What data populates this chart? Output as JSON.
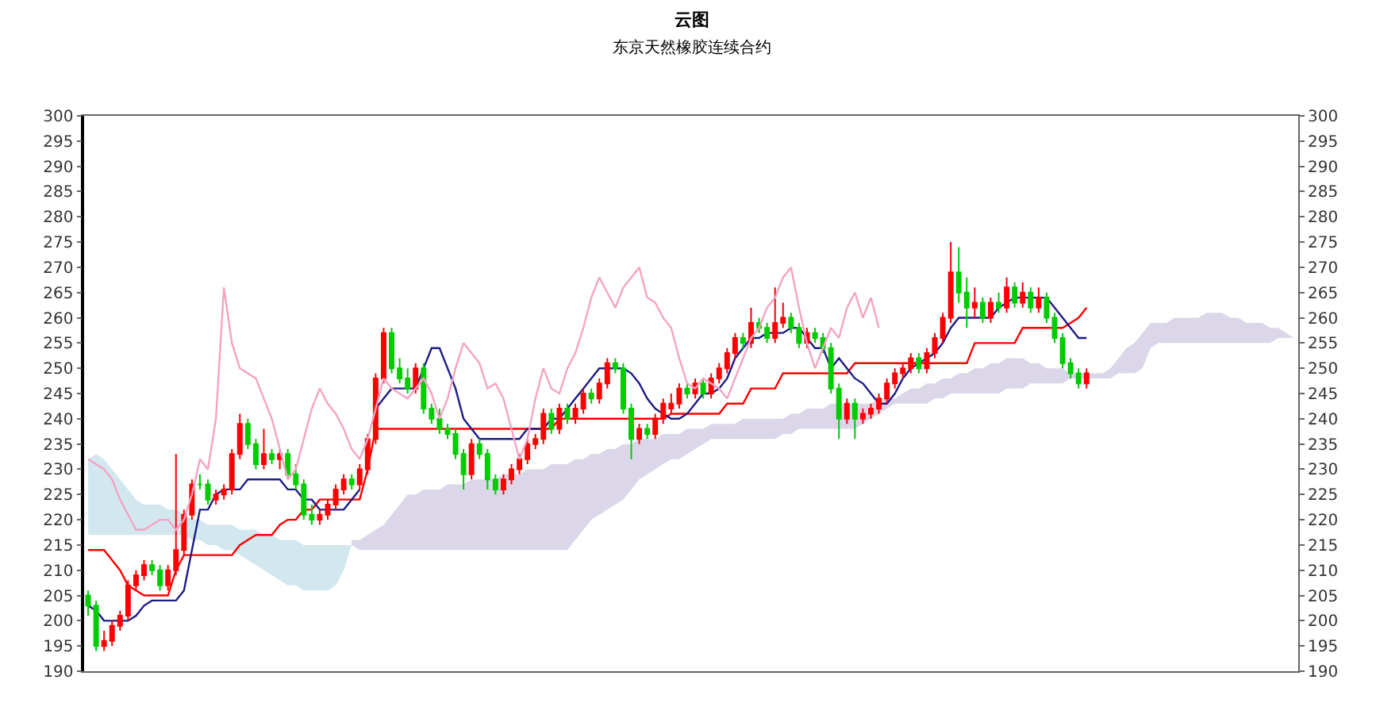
{
  "chart_data": {
    "type": "candlestick",
    "title": "云图",
    "subtitle": "东京天然橡胶连续合约",
    "categories": [
      null,
      null,
      null,
      null,
      null,
      null,
      null,
      null,
      null,
      null,
      null,
      null,
      null,
      null,
      null,
      null,
      null,
      null,
      null,
      null,
      null,
      null,
      null,
      null,
      null,
      null,
      null,
      null,
      null,
      null,
      null,
      null,
      null,
      null,
      null,
      null,
      null,
      null,
      null,
      null,
      null,
      null,
      null,
      null,
      null,
      null,
      null,
      null,
      null,
      null,
      null,
      null,
      null,
      null,
      null,
      null,
      null,
      null,
      null,
      null,
      null,
      null,
      null,
      null,
      null,
      null,
      null,
      null,
      null,
      null,
      null,
      null,
      null,
      null,
      null,
      null,
      null,
      null,
      null,
      null,
      null,
      null,
      null,
      null,
      null,
      null,
      null,
      null,
      null,
      null,
      null,
      null,
      null,
      null,
      null,
      null,
      null,
      null,
      null,
      null,
      null,
      null,
      null,
      null,
      null,
      null,
      null,
      null,
      null,
      null,
      null,
      null,
      null,
      null,
      null,
      null,
      null,
      null,
      null,
      null,
      null,
      null,
      null,
      null,
      null,
      null,
      null,
      null,
      null,
      null,
      null,
      null,
      null,
      null,
      null,
      null,
      null,
      null,
      null,
      null,
      null,
      null,
      null,
      null,
      null,
      null,
      null,
      null,
      null,
      null,
      null,
      null
    ],
    "colors": [
      "#00cc00",
      "#00cc00",
      "#ff0000",
      "#ff0000",
      "#ff0000",
      "#ff0000",
      "#ff0000",
      "#ff0000",
      "#00cc00",
      "#00cc00",
      "#ff0000",
      "#ff0000",
      "#ff0000",
      "#ff0000",
      "#00cc00",
      "#00cc00",
      "#ff0000",
      "#ff0000",
      "#ff0000",
      "#ff0000",
      "#00cc00",
      "#00cc00",
      "#ff0000",
      "#00cc00",
      "#ff0000",
      "#00cc00",
      "#00cc00",
      "#00cc00",
      "#00cc00",
      "#ff0000",
      "#ff0000",
      "#ff0000",
      "#ff0000",
      "#00cc00",
      "#ff0000",
      "#ff0000",
      "#ff0000",
      "#ff0000",
      "#00cc00",
      "#00cc00",
      "#00cc00",
      "#ff0000",
      "#00cc00",
      "#00cc00",
      "#00cc00",
      "#00cc00",
      "#00cc00",
      "#00cc00",
      "#ff0000",
      "#00cc00",
      "#00cc00",
      "#00cc00",
      "#ff0000",
      "#ff0000",
      "#ff0000",
      "#ff0000",
      "#ff0000",
      "#ff0000",
      "#00cc00",
      "#ff0000",
      "#00cc00",
      "#ff0000",
      "#ff0000",
      "#00cc00",
      "#ff0000",
      "#ff0000",
      "#00cc00",
      "#00cc00",
      "#00cc00",
      "#ff0000",
      "#00cc00",
      "#ff0000",
      "#ff0000",
      "#ff0000",
      "#ff0000",
      "#00cc00",
      "#ff0000",
      "#00cc00",
      "#ff0000",
      "#ff0000",
      "#ff0000",
      "#ff0000",
      "#00cc00",
      "#ff0000",
      "#00cc00",
      "#00cc00",
      "#ff0000",
      "#ff0000",
      "#00cc00",
      "#00cc00",
      "#ff0000",
      "#00cc00",
      "#00cc00",
      "#00cc00",
      "#00cc00",
      "#ff0000",
      "#00cc00",
      "#ff0000",
      "#ff0000",
      "#ff0000",
      "#ff0000",
      "#ff0000",
      "#ff0000",
      "#ff0000",
      "#00cc00",
      "#ff0000",
      "#ff0000",
      "#ff0000",
      "#ff0000",
      "#00cc00",
      "#00cc00",
      "#ff0000",
      "#00cc00",
      "#ff0000",
      "#00cc00",
      "#ff0000",
      "#00cc00",
      "#ff0000",
      "#00cc00",
      "#ff0000",
      "#00cc00",
      "#00cc00",
      "#00cc00",
      "#00cc00",
      "#00cc00",
      "#ff0000",
      null,
      null,
      null,
      null,
      null,
      null,
      null,
      null,
      null,
      null,
      null,
      null,
      null,
      null,
      null,
      null,
      null,
      null,
      null,
      null,
      null,
      null,
      null,
      null,
      null,
      null
    ],
    "ohlc": [
      [
        205,
        206,
        201,
        203
      ],
      [
        203,
        204,
        194,
        195
      ],
      [
        195,
        198,
        194,
        196
      ],
      [
        196,
        200,
        195,
        199
      ],
      [
        199,
        202,
        198,
        201
      ],
      [
        201,
        208,
        200,
        207
      ],
      [
        207,
        210,
        206,
        209
      ],
      [
        209,
        212,
        208,
        211
      ],
      [
        211,
        212,
        209,
        210
      ],
      [
        210,
        211,
        206,
        207
      ],
      [
        207,
        211,
        206,
        210
      ],
      [
        210,
        233,
        209,
        214
      ],
      [
        214,
        222,
        213,
        221
      ],
      [
        221,
        228,
        220,
        227
      ],
      [
        227,
        229,
        226,
        227
      ],
      [
        227,
        228,
        223,
        224
      ],
      [
        224,
        226,
        223,
        225
      ],
      [
        225,
        227,
        224,
        226
      ],
      [
        226,
        234,
        225,
        233
      ],
      [
        233,
        241,
        232,
        239
      ],
      [
        239,
        240,
        234,
        235
      ],
      [
        235,
        236,
        230,
        231
      ],
      [
        231,
        238,
        230,
        233
      ],
      [
        233,
        234,
        231,
        232
      ],
      [
        232,
        234,
        230,
        233
      ],
      [
        233,
        234,
        228,
        229
      ],
      [
        229,
        231,
        226,
        227
      ],
      [
        227,
        228,
        220,
        221
      ],
      [
        221,
        223,
        219,
        220
      ],
      [
        220,
        222,
        219,
        221
      ],
      [
        221,
        224,
        220,
        223
      ],
      [
        223,
        227,
        222,
        226
      ],
      [
        226,
        229,
        225,
        228
      ],
      [
        228,
        229,
        226,
        227
      ],
      [
        227,
        231,
        226,
        230
      ],
      [
        230,
        237,
        229,
        236
      ],
      [
        236,
        249,
        235,
        248
      ],
      [
        248,
        258,
        247,
        257
      ],
      [
        257,
        258,
        249,
        250
      ],
      [
        250,
        252,
        247,
        248
      ],
      [
        248,
        250,
        245,
        246
      ],
      [
        246,
        251,
        245,
        250
      ],
      [
        250,
        251,
        241,
        242
      ],
      [
        242,
        243,
        239,
        240
      ],
      [
        240,
        242,
        237,
        238
      ],
      [
        238,
        239,
        236,
        237
      ],
      [
        237,
        238,
        232,
        233
      ],
      [
        233,
        234,
        226,
        229
      ],
      [
        229,
        236,
        228,
        235
      ],
      [
        235,
        236,
        232,
        233
      ],
      [
        233,
        234,
        226,
        228
      ],
      [
        228,
        229,
        225,
        226
      ],
      [
        226,
        229,
        225,
        228
      ],
      [
        228,
        231,
        227,
        230
      ],
      [
        230,
        233,
        229,
        232
      ],
      [
        232,
        236,
        231,
        235
      ],
      [
        235,
        237,
        234,
        236
      ],
      [
        236,
        242,
        235,
        241
      ],
      [
        241,
        242,
        237,
        238
      ],
      [
        238,
        243,
        237,
        242
      ],
      [
        242,
        243,
        239,
        240
      ],
      [
        240,
        243,
        239,
        242
      ],
      [
        242,
        246,
        241,
        245
      ],
      [
        245,
        246,
        243,
        244
      ],
      [
        244,
        248,
        243,
        247
      ],
      [
        247,
        252,
        246,
        251
      ],
      [
        251,
        252,
        249,
        250
      ],
      [
        250,
        251,
        241,
        242
      ],
      [
        242,
        243,
        232,
        236
      ],
      [
        236,
        239,
        235,
        238
      ],
      [
        238,
        239,
        236,
        237
      ],
      [
        237,
        241,
        236,
        240
      ],
      [
        240,
        244,
        239,
        243
      ],
      [
        242,
        245,
        241,
        243
      ],
      [
        243,
        247,
        242,
        246
      ],
      [
        246,
        247,
        244,
        245
      ],
      [
        245,
        248,
        244,
        247
      ],
      [
        247,
        248,
        244,
        245
      ],
      [
        245,
        249,
        244,
        248
      ],
      [
        248,
        251,
        247,
        250
      ],
      [
        250,
        254,
        249,
        253
      ],
      [
        253,
        257,
        252,
        256
      ],
      [
        256,
        257,
        254,
        255
      ],
      [
        255,
        262,
        254,
        259
      ],
      [
        259,
        260,
        257,
        258
      ],
      [
        258,
        259,
        255,
        256
      ],
      [
        256,
        266,
        255,
        259
      ],
      [
        259,
        263,
        258,
        260
      ],
      [
        260,
        261,
        257,
        258
      ],
      [
        258,
        259,
        254,
        255
      ],
      [
        255,
        258,
        254,
        257
      ],
      [
        257,
        258,
        255,
        256
      ],
      [
        256,
        257,
        253,
        254
      ],
      [
        254,
        255,
        245,
        246
      ],
      [
        246,
        247,
        236,
        240
      ],
      [
        240,
        244,
        239,
        243
      ],
      [
        243,
        244,
        236,
        240
      ],
      [
        240,
        242,
        239,
        241
      ],
      [
        241,
        243,
        240,
        242
      ],
      [
        242,
        245,
        241,
        244
      ],
      [
        244,
        248,
        243,
        247
      ],
      [
        247,
        250,
        246,
        249
      ],
      [
        249,
        251,
        248,
        250
      ],
      [
        250,
        253,
        249,
        252
      ],
      [
        252,
        253,
        249,
        250
      ],
      [
        250,
        254,
        249,
        253
      ],
      [
        253,
        257,
        252,
        256
      ],
      [
        256,
        261,
        255,
        260
      ],
      [
        260,
        275,
        259,
        269
      ],
      [
        269,
        274,
        263,
        265
      ],
      [
        265,
        268,
        258,
        262
      ],
      [
        262,
        266,
        260,
        263
      ],
      [
        263,
        264,
        259,
        260
      ],
      [
        260,
        264,
        259,
        263
      ],
      [
        263,
        265,
        261,
        262
      ],
      [
        262,
        268,
        261,
        266
      ],
      [
        266,
        267,
        262,
        263
      ],
      [
        263,
        267,
        262,
        265
      ],
      [
        265,
        266,
        261,
        262
      ],
      [
        262,
        266,
        261,
        264
      ],
      [
        264,
        265,
        259,
        260
      ],
      [
        260,
        261,
        255,
        256
      ],
      [
        256,
        257,
        250,
        251
      ],
      [
        251,
        252,
        248,
        249
      ],
      [
        249,
        250,
        246,
        247
      ],
      [
        247,
        250,
        246,
        249
      ],
      null,
      null,
      null,
      null,
      null,
      null,
      null,
      null,
      null,
      null,
      null,
      null,
      null,
      null,
      null,
      null,
      null,
      null,
      null,
      null,
      null,
      null,
      null,
      null,
      null,
      null
    ],
    "series": [
      {
        "type": "area",
        "color": "#d3e7ef",
        "values": [
          null,
          null,
          null,
          null,
          null,
          null,
          null,
          null,
          null,
          null,
          null,
          null,
          null,
          null,
          null,
          null,
          null,
          null,
          null,
          null,
          null,
          null,
          null,
          null,
          null,
          null,
          null,
          null,
          null,
          null,
          null,
          null,
          null,
          null,
          null,
          null,
          null,
          null,
          null,
          null,
          null,
          null,
          null,
          null,
          null,
          null,
          null,
          null,
          null,
          null,
          null,
          null,
          null,
          null,
          null,
          null,
          null,
          null,
          null,
          null,
          null,
          null,
          null,
          null,
          null,
          null,
          null,
          null,
          null,
          null,
          null,
          null,
          null,
          null,
          null,
          null,
          null,
          null,
          null,
          null,
          null,
          null,
          null,
          null,
          null,
          null,
          null,
          null,
          null,
          null,
          null,
          null,
          null,
          null,
          null,
          null,
          null,
          null,
          null,
          null,
          null,
          null,
          null,
          null,
          null,
          null,
          null,
          null,
          null,
          null,
          null,
          null,
          null,
          null,
          null,
          null,
          null,
          null,
          null,
          null,
          null,
          null,
          null,
          null,
          null,
          null,
          null,
          null,
          null,
          null,
          null,
          null,
          null,
          null,
          null,
          null,
          null,
          null,
          null,
          null,
          null,
          null,
          null,
          null,
          null,
          null,
          null,
          null,
          null,
          null,
          null,
          null
        ],
        "upper": [
          232,
          233,
          232,
          230,
          228,
          226,
          224,
          223,
          223,
          223,
          222,
          222,
          221,
          220,
          220,
          219,
          219,
          219,
          219,
          218,
          218,
          218,
          217,
          217,
          216,
          216,
          216,
          215,
          215,
          215,
          215,
          215,
          215,
          215,
          null,
          null,
          null,
          null,
          null,
          null,
          null,
          null,
          null,
          null,
          null,
          null,
          null,
          null,
          null,
          null,
          null,
          null,
          null,
          null,
          null,
          null,
          null,
          null,
          null,
          null,
          null,
          null,
          null,
          null,
          null,
          null,
          null,
          null,
          null,
          null,
          null,
          null,
          null,
          null,
          null,
          null,
          null,
          null,
          null,
          null,
          null,
          null,
          null,
          null,
          null,
          null,
          null,
          null,
          null,
          null,
          null,
          null,
          null,
          null,
          null,
          null,
          null,
          null,
          null,
          null,
          null,
          null,
          null,
          null,
          null,
          null,
          null,
          null,
          null,
          null,
          null,
          null,
          null,
          null,
          null,
          null,
          null,
          null,
          null,
          null,
          null,
          null,
          null,
          null,
          null,
          null,
          null,
          null,
          null,
          null,
          null,
          null,
          null,
          null,
          null,
          null,
          null,
          null,
          null,
          null,
          null,
          null,
          null,
          null,
          null,
          null,
          null,
          null,
          null,
          null,
          null,
          null
        ],
        "lower": [
          217,
          217,
          217,
          217,
          217,
          217,
          217,
          217,
          217,
          217,
          217,
          217,
          217,
          216,
          216,
          215,
          215,
          214,
          214,
          213,
          212,
          211,
          210,
          209,
          208,
          207,
          207,
          206,
          206,
          206,
          206,
          207,
          210,
          215,
          null,
          null,
          null,
          null,
          null,
          null,
          null,
          null,
          null,
          null,
          null,
          null,
          null,
          null,
          null,
          null,
          null,
          null,
          null,
          null,
          null,
          null,
          null,
          null,
          null,
          null,
          null,
          null,
          null,
          null,
          null,
          null,
          null,
          null,
          null,
          null,
          null,
          null,
          null,
          null,
          null,
          null,
          null,
          null,
          null,
          null,
          null,
          null,
          null,
          null,
          null,
          null,
          null,
          null,
          null,
          null,
          null,
          null,
          null,
          null,
          null,
          null,
          null,
          null,
          null,
          null,
          null,
          null,
          null,
          null,
          null,
          null,
          null,
          null,
          null,
          null,
          null,
          null,
          null,
          null,
          null,
          null,
          null,
          null,
          null,
          null,
          null,
          null,
          null,
          null,
          null,
          null,
          null,
          null,
          null,
          null,
          null,
          null,
          null,
          null,
          null,
          null,
          null,
          null,
          null,
          null,
          null,
          null,
          null,
          null,
          null,
          null,
          null,
          null,
          null,
          null,
          null,
          null
        ]
      },
      {
        "type": "area",
        "color": "#dcd7e8",
        "values": [
          null,
          null,
          null,
          null,
          null,
          null,
          null,
          null,
          null,
          null,
          null,
          null,
          null,
          null,
          null,
          null,
          null,
          null,
          null,
          null,
          null,
          null,
          null,
          null,
          null,
          null,
          null,
          null,
          null,
          null,
          null,
          null,
          null,
          null,
          null,
          null,
          null,
          null,
          null,
          null,
          null,
          null,
          null,
          null,
          null,
          null,
          null,
          null,
          null,
          null,
          null,
          null,
          null,
          null,
          null,
          null,
          null,
          null,
          null,
          null,
          null,
          null,
          null,
          null,
          null,
          null,
          null,
          null,
          null,
          null,
          null,
          null,
          null,
          null,
          null,
          null,
          null,
          null,
          null,
          null,
          null,
          null,
          null,
          null,
          null,
          null,
          null,
          null,
          null,
          null,
          null,
          null,
          null,
          null,
          null,
          null,
          null,
          null,
          null,
          null,
          null,
          null,
          null,
          null,
          null,
          null,
          null,
          null,
          null,
          null,
          null,
          null,
          null,
          null,
          null,
          null,
          null,
          null,
          null,
          null,
          null,
          null,
          null,
          null,
          null,
          null,
          null,
          null,
          null,
          null,
          null,
          null,
          null,
          null,
          null,
          null,
          null,
          null,
          null,
          null,
          null,
          null,
          null,
          null,
          null,
          null,
          null,
          null,
          null,
          null,
          null,
          null
        ],
        "upper": [
          null,
          null,
          null,
          null,
          null,
          null,
          null,
          null,
          null,
          null,
          null,
          null,
          null,
          null,
          null,
          null,
          null,
          null,
          null,
          null,
          null,
          null,
          null,
          null,
          null,
          null,
          null,
          null,
          null,
          null,
          null,
          null,
          null,
          216,
          216,
          217,
          218,
          219,
          221,
          223,
          225,
          225,
          226,
          226,
          226,
          227,
          227,
          227,
          228,
          228,
          228,
          228,
          229,
          229,
          229,
          230,
          230,
          230,
          231,
          231,
          231,
          232,
          232,
          233,
          233,
          234,
          234,
          235,
          235,
          236,
          236,
          236,
          237,
          237,
          237,
          238,
          238,
          238,
          239,
          239,
          239,
          239,
          240,
          240,
          240,
          240,
          240,
          240,
          241,
          241,
          242,
          242,
          242,
          243,
          243,
          243,
          243,
          243,
          243,
          244,
          244,
          244,
          245,
          246,
          246,
          247,
          247,
          248,
          248,
          249,
          249,
          250,
          250,
          251,
          251,
          252,
          252,
          252,
          251,
          251,
          250,
          250,
          250,
          249,
          249,
          249,
          249,
          249,
          250,
          252,
          254,
          255,
          257,
          259,
          259,
          259,
          260,
          260,
          260,
          260,
          261,
          261,
          261,
          260,
          260,
          259,
          259,
          259,
          258,
          258,
          257,
          256
        ],
        "lower": [
          null,
          null,
          null,
          null,
          null,
          null,
          null,
          null,
          null,
          null,
          null,
          null,
          null,
          null,
          null,
          null,
          null,
          null,
          null,
          null,
          null,
          null,
          null,
          null,
          null,
          null,
          null,
          null,
          null,
          null,
          null,
          null,
          null,
          215,
          214,
          214,
          214,
          214,
          214,
          214,
          214,
          214,
          214,
          214,
          214,
          214,
          214,
          214,
          214,
          214,
          214,
          214,
          214,
          214,
          214,
          214,
          214,
          214,
          214,
          214,
          214,
          216,
          218,
          220,
          221,
          222,
          223,
          224,
          226,
          228,
          229,
          230,
          231,
          232,
          232,
          233,
          234,
          235,
          236,
          236,
          236,
          236,
          236,
          236,
          236,
          236,
          236,
          237,
          237,
          238,
          238,
          238,
          238,
          238,
          238,
          238,
          238,
          239,
          240,
          241,
          242,
          243,
          243,
          243,
          243,
          243,
          244,
          244,
          245,
          245,
          245,
          245,
          245,
          245,
          245,
          246,
          246,
          246,
          247,
          247,
          247,
          247,
          247,
          248,
          248,
          248,
          248,
          248,
          248,
          249,
          249,
          249,
          250,
          254,
          255,
          255,
          255,
          255,
          255,
          255,
          255,
          255,
          255,
          255,
          255,
          255,
          255,
          255,
          255,
          256,
          256,
          256
        ]
      },
      {
        "type": "line",
        "color": "#f4a3c4",
        "axis": "y2",
        "values": [
          232,
          231,
          230,
          228,
          224,
          221,
          218,
          218,
          219,
          220,
          220,
          218,
          220,
          225,
          232,
          230,
          240,
          266,
          255,
          250,
          249,
          248,
          244,
          240,
          234,
          228,
          230,
          236,
          242,
          246,
          243,
          241,
          238,
          234,
          232,
          236,
          242,
          248,
          246,
          245,
          244,
          246,
          248,
          245,
          240,
          244,
          250,
          255,
          253,
          251,
          246,
          247,
          244,
          238,
          232,
          236,
          244,
          250,
          246,
          245,
          250,
          253,
          258,
          264,
          268,
          265,
          262,
          266,
          268,
          270,
          264,
          263,
          260,
          258,
          252,
          247,
          246,
          248,
          247,
          246,
          244,
          248,
          252,
          256,
          258,
          262,
          264,
          268,
          270,
          262,
          255,
          250,
          254,
          258,
          256,
          262,
          265,
          260,
          264,
          258,
          null,
          null,
          null,
          null,
          null,
          null,
          null,
          null,
          null,
          null,
          null,
          null,
          null,
          null,
          null,
          null,
          null,
          null,
          null,
          null,
          null,
          null,
          null,
          null,
          null,
          null,
          null,
          null,
          null,
          null,
          null,
          null,
          null,
          null,
          null,
          null,
          null,
          null,
          null,
          null,
          null,
          null,
          null,
          null,
          null,
          null,
          null,
          null,
          null,
          null,
          null,
          null
        ]
      },
      {
        "type": "line",
        "color": "#ff0000",
        "values": [
          214,
          214,
          214,
          212,
          210,
          207,
          206,
          205,
          205,
          205,
          205,
          210,
          213,
          213,
          213,
          213,
          213,
          213,
          213,
          215,
          216,
          217,
          217,
          217,
          219,
          220,
          220,
          222,
          222,
          224,
          224,
          224,
          224,
          224,
          224,
          230,
          238,
          238,
          238,
          238,
          238,
          238,
          238,
          238,
          238,
          238,
          238,
          238,
          238,
          238,
          238,
          238,
          238,
          238,
          238,
          238,
          238,
          238,
          238,
          240,
          240,
          240,
          240,
          240,
          240,
          240,
          240,
          240,
          240,
          240,
          240,
          240,
          240,
          241,
          241,
          241,
          241,
          241,
          241,
          241,
          243,
          243,
          243,
          246,
          246,
          246,
          246,
          249,
          249,
          249,
          249,
          249,
          249,
          249,
          249,
          249,
          251,
          251,
          251,
          251,
          251,
          251,
          251,
          251,
          251,
          251,
          251,
          251,
          251,
          251,
          251,
          255,
          255,
          255,
          255,
          255,
          255,
          258,
          258,
          258,
          258,
          258,
          258,
          259,
          260,
          262,
          null,
          null,
          null,
          null,
          null,
          null,
          null,
          null,
          null,
          null,
          null,
          null,
          null,
          null,
          null,
          null,
          null,
          null,
          null,
          null,
          null,
          null,
          null,
          null,
          null,
          null
        ]
      },
      {
        "type": "line",
        "color": "#1c1c86",
        "values": [
          203,
          202,
          200,
          200,
          200,
          200,
          201,
          203,
          204,
          204,
          204,
          204,
          206,
          214,
          222,
          222,
          225,
          226,
          226,
          226,
          228,
          228,
          228,
          228,
          228,
          226,
          226,
          224,
          224,
          222,
          222,
          222,
          222,
          224,
          226,
          null,
          242,
          244,
          246,
          246,
          246,
          246,
          250,
          254,
          254,
          250,
          246,
          240,
          238,
          236,
          236,
          236,
          236,
          236,
          236,
          238,
          238,
          238,
          240,
          240,
          242,
          244,
          246,
          248,
          250,
          250,
          250,
          250,
          249,
          247,
          244,
          242,
          241,
          240,
          240,
          241,
          243,
          245,
          245,
          246,
          248,
          252,
          254,
          256,
          256,
          257,
          257,
          257,
          258,
          258,
          256,
          254,
          254,
          250,
          252,
          250,
          248,
          247,
          245,
          243,
          243,
          245,
          248,
          250,
          251,
          252,
          253,
          255,
          258,
          260,
          260,
          260,
          260,
          260,
          262,
          263,
          264,
          264,
          264,
          264,
          264,
          262,
          260,
          258,
          256,
          256,
          null,
          null,
          null,
          null,
          null,
          null,
          null,
          null,
          null,
          null,
          null,
          null,
          null,
          null,
          null,
          null,
          null,
          null,
          null,
          null,
          null,
          null,
          null,
          null,
          null,
          null
        ]
      }
    ],
    "ylim": [
      190,
      300
    ],
    "yticks": [
      190,
      195,
      200,
      205,
      210,
      215,
      220,
      225,
      230,
      235,
      240,
      245,
      250,
      255,
      260,
      265,
      270,
      275,
      280,
      285,
      290,
      295,
      300
    ],
    "y2lim": [
      190,
      300
    ],
    "y2ticks": [
      190,
      195,
      200,
      205,
      210,
      215,
      220,
      225,
      230,
      235,
      240,
      245,
      250,
      255,
      260,
      265,
      270,
      275,
      280,
      285,
      290,
      295,
      300
    ],
    "tick_labels": "y"
  }
}
